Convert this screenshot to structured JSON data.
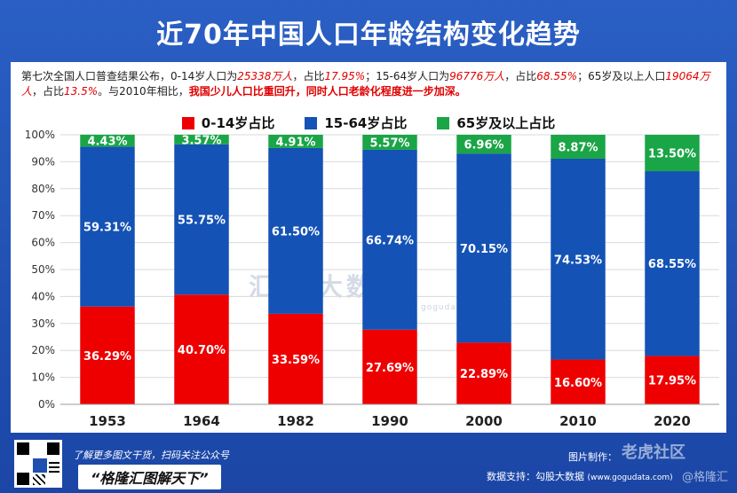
{
  "title": "近70年中国人口年龄结构变化趋势",
  "description": {
    "part1": "第七次全国人口普查结果公布，0-14岁人口为",
    "v1": "25338万人",
    "part2": "，占比",
    "v2": "17.95%",
    "part3": "；15-64岁人口为",
    "v3": "96776万人",
    "part4": "，占比",
    "v4": "68.55%",
    "part5": "；65岁及以上人口",
    "v5": "19064万人",
    "part6": "，占比",
    "v6": "13.5%",
    "part7": "。与2010年相比，",
    "highlight": "我国少儿人口比重回升，同时人口老龄化程度进一步加深。"
  },
  "colors": {
    "age_0_14": "#ee0000",
    "age_15_64": "#1452b5",
    "age_65_plus": "#1aa547",
    "grid": "#d9d9d9",
    "axis_text": "#333333"
  },
  "chart_data": {
    "type": "bar",
    "stacked": true,
    "categories": [
      "1953",
      "1964",
      "1982",
      "1990",
      "2000",
      "2010",
      "2020"
    ],
    "series": [
      {
        "name": "0-14岁占比",
        "values": [
          36.29,
          40.7,
          33.59,
          27.69,
          22.89,
          16.6,
          17.95
        ],
        "labels": [
          "36.29%",
          "40.70%",
          "33.59%",
          "27.69%",
          "22.89%",
          "16.60%",
          "17.95%"
        ]
      },
      {
        "name": "15-64岁占比",
        "values": [
          59.31,
          55.75,
          61.5,
          66.74,
          70.15,
          74.53,
          68.55
        ],
        "labels": [
          "59.31%",
          "55.75%",
          "61.50%",
          "66.74%",
          "70.15%",
          "74.53%",
          "68.55%"
        ]
      },
      {
        "name": "65岁及以上占比",
        "values": [
          4.43,
          3.57,
          4.91,
          5.57,
          6.96,
          8.87,
          13.5
        ],
        "labels": [
          "4.43%",
          "3.57%",
          "4.91%",
          "5.57%",
          "6.96%",
          "8.87%",
          "13.50%"
        ]
      }
    ],
    "yticks": [
      "0%",
      "10%",
      "20%",
      "30%",
      "40%",
      "50%",
      "60%",
      "70%",
      "80%",
      "90%",
      "100%"
    ],
    "ylim": [
      0,
      100
    ],
    "legend": "top-center",
    "grid": true
  },
  "footer": {
    "cta": "了解更多图文干货，扫码关注公众号",
    "slogan": "“格隆汇图解天下”",
    "credit_made": "图片制作：",
    "credit_data": "数据支持：勾股大数据",
    "credit_site": "(www.gogudata.com)"
  },
  "watermarks": {
    "corner_top": "老虎社区",
    "corner_bottom": "@格隆汇",
    "center": "汇    股大数",
    "center_sub": "goguda"
  },
  "icons": {
    "qr": "qr-code-icon"
  }
}
